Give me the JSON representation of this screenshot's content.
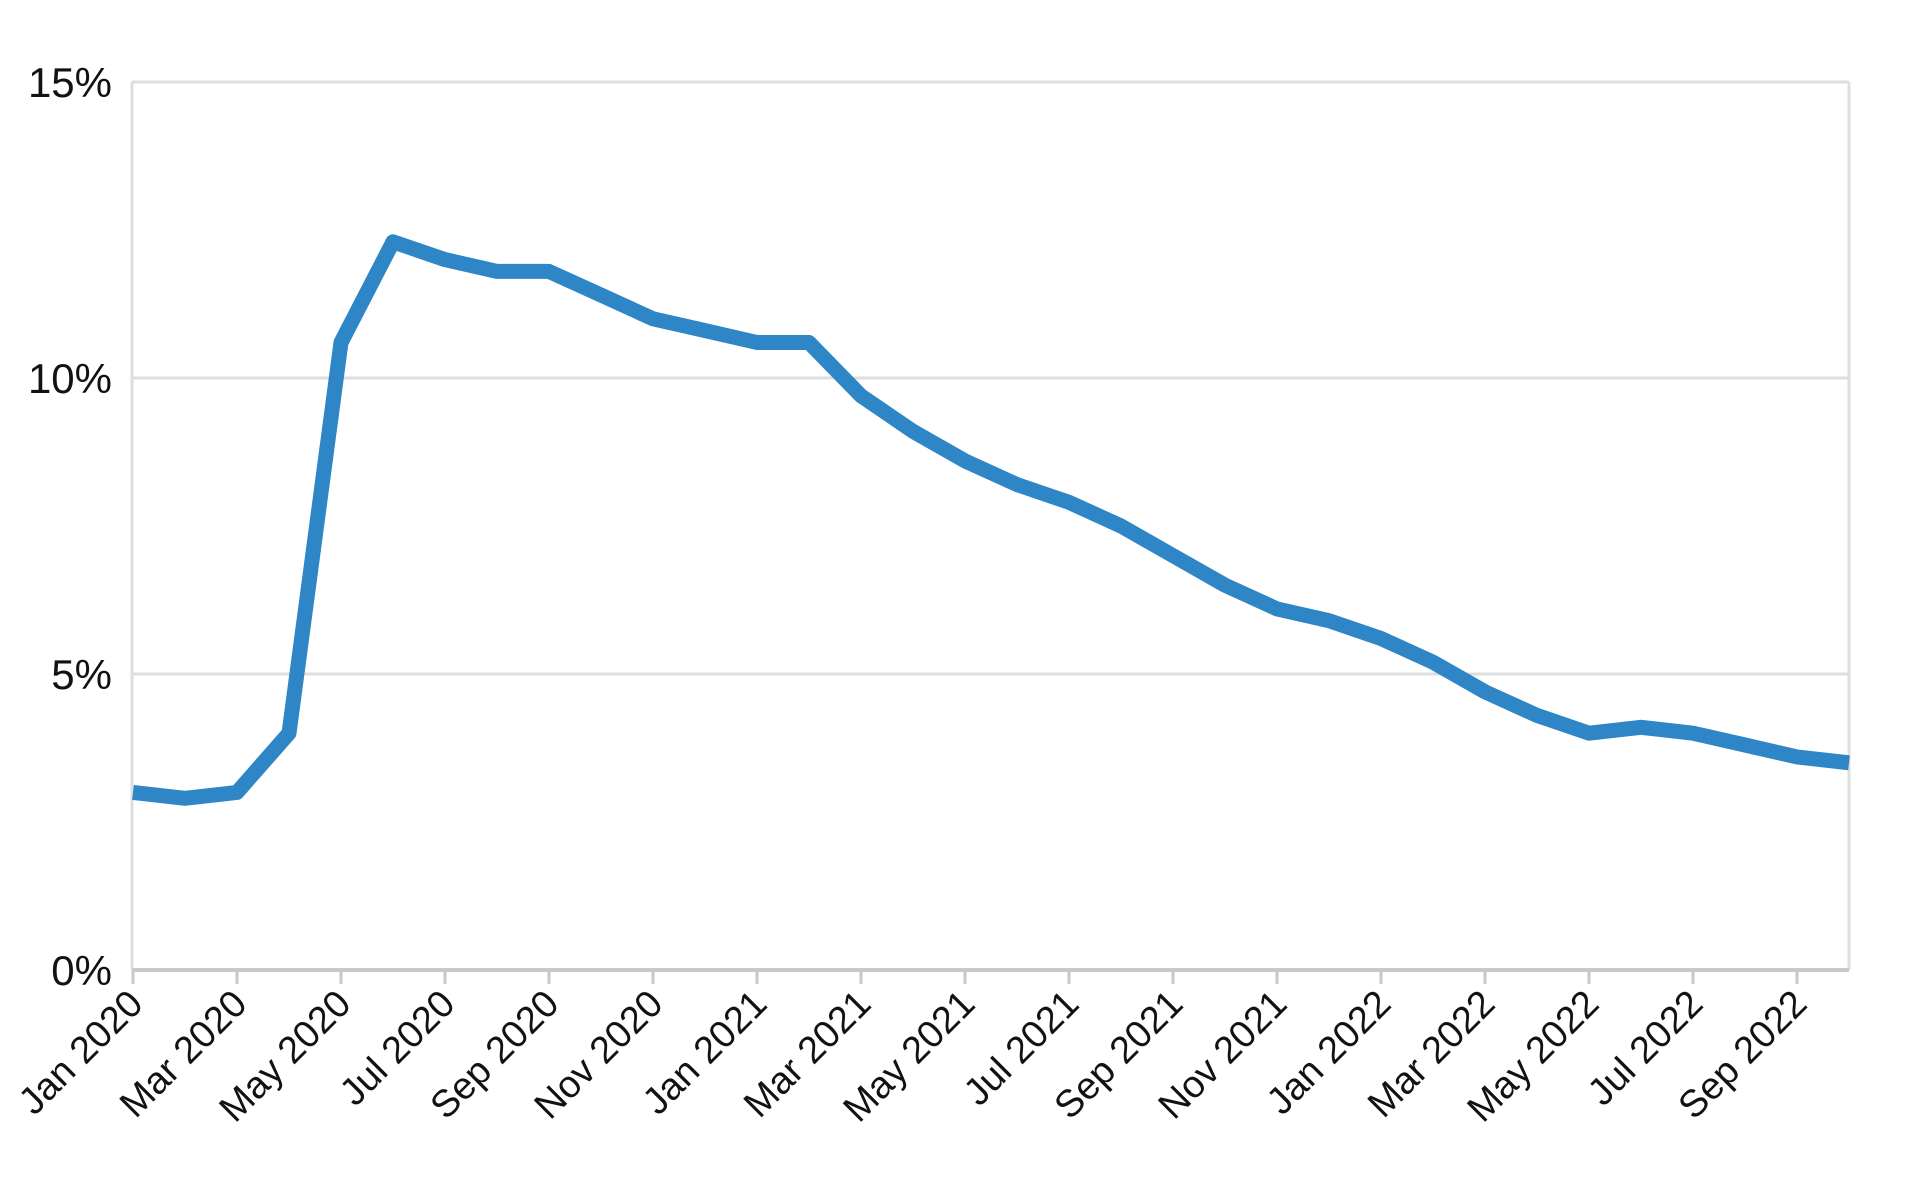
{
  "chart_data": {
    "type": "line",
    "title": "",
    "xlabel": "",
    "ylabel": "",
    "ylim": [
      0,
      15
    ],
    "grid": "horizontal",
    "legend": "none",
    "x": [
      "Jan 2020",
      "Feb 2020",
      "Mar 2020",
      "Apr 2020",
      "May 2020",
      "Jun 2020",
      "Jul 2020",
      "Aug 2020",
      "Sep 2020",
      "Oct 2020",
      "Nov 2020",
      "Dec 2020",
      "Jan 2021",
      "Feb 2021",
      "Mar 2021",
      "Apr 2021",
      "May 2021",
      "Jun 2021",
      "Jul 2021",
      "Aug 2021",
      "Sep 2021",
      "Oct 2021",
      "Nov 2021",
      "Dec 2021",
      "Jan 2022",
      "Feb 2022",
      "Mar 2022",
      "Apr 2022",
      "May 2022",
      "Jun 2022",
      "Jul 2022",
      "Aug 2022",
      "Sep 2022",
      "Oct 2022"
    ],
    "values": [
      3.0,
      2.9,
      3.0,
      4.0,
      10.6,
      12.3,
      12.0,
      11.8,
      11.8,
      11.4,
      11.0,
      10.8,
      10.6,
      10.6,
      9.7,
      9.1,
      8.6,
      8.2,
      7.9,
      7.5,
      7.0,
      6.5,
      6.1,
      5.9,
      5.6,
      5.2,
      4.7,
      4.3,
      4.0,
      4.1,
      4.0,
      3.8,
      3.6,
      3.5
    ],
    "yticks": [
      {
        "value": 0,
        "label": "0%"
      },
      {
        "value": 5,
        "label": "5%"
      },
      {
        "value": 10,
        "label": "10%"
      },
      {
        "value": 15,
        "label": "15%"
      }
    ],
    "xticks": [
      {
        "index": 0,
        "label": "Jan 2020"
      },
      {
        "index": 2,
        "label": "Mar 2020"
      },
      {
        "index": 4,
        "label": "May 2020"
      },
      {
        "index": 6,
        "label": "Jul 2020"
      },
      {
        "index": 8,
        "label": "Sep 2020"
      },
      {
        "index": 10,
        "label": "Nov 2020"
      },
      {
        "index": 12,
        "label": "Jan 2021"
      },
      {
        "index": 14,
        "label": "Mar 2021"
      },
      {
        "index": 16,
        "label": "May 2021"
      },
      {
        "index": 18,
        "label": "Jul 2021"
      },
      {
        "index": 20,
        "label": "Sep 2021"
      },
      {
        "index": 22,
        "label": "Nov 2021"
      },
      {
        "index": 24,
        "label": "Jan 2022"
      },
      {
        "index": 26,
        "label": "Mar 2022"
      },
      {
        "index": 28,
        "label": "May 2022"
      },
      {
        "index": 30,
        "label": "Jul 2022"
      },
      {
        "index": 32,
        "label": "Sep 2022"
      }
    ],
    "colors": {
      "line": "#2e86c6",
      "grid": "#dedede",
      "frame": "#dedede",
      "axis": "#c9c9c9",
      "text": "#121212",
      "background": "#ffffff"
    }
  }
}
